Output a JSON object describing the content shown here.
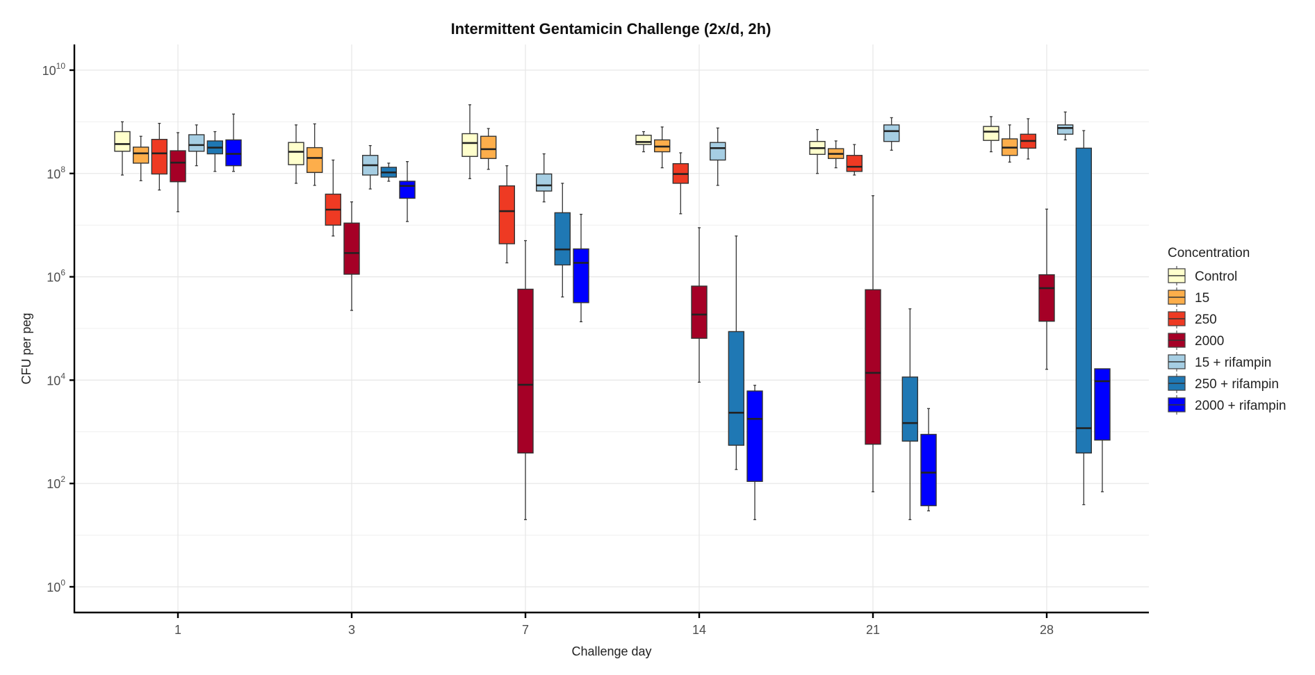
{
  "chart_data": {
    "type": "boxplot",
    "title": "Intermittent Gentamicin Challenge (2x/d, 2h)",
    "xlabel": "Challenge day",
    "ylabel": "CFU per peg",
    "yscale": "log10",
    "ylim_log10": [
      -0.4,
      10.5
    ],
    "y_ticks_log10": [
      0,
      2,
      4,
      6,
      8,
      10
    ],
    "y_tick_base": "10",
    "categories": [
      "1",
      "3",
      "7",
      "14",
      "21",
      "28"
    ],
    "grid": true,
    "legend": {
      "title": "Concentration",
      "position": "right"
    },
    "series": [
      {
        "name": "Control",
        "color": "#FFFFCC",
        "boxes_log10": [
          {
            "day": "1",
            "min": 7.97,
            "q1": 8.43,
            "median": 8.57,
            "q3": 8.81,
            "max": 9.0
          },
          {
            "day": "3",
            "min": 7.81,
            "q1": 8.17,
            "median": 8.42,
            "q3": 8.6,
            "max": 8.94
          },
          {
            "day": "7",
            "min": 7.9,
            "q1": 8.33,
            "median": 8.59,
            "q3": 8.77,
            "max": 9.33
          },
          {
            "day": "14",
            "min": 8.42,
            "q1": 8.56,
            "median": 8.61,
            "q3": 8.74,
            "max": 8.81
          },
          {
            "day": "21",
            "min": 8.0,
            "q1": 8.37,
            "median": 8.49,
            "q3": 8.62,
            "max": 8.85
          },
          {
            "day": "28",
            "min": 8.42,
            "q1": 8.64,
            "median": 8.81,
            "q3": 8.91,
            "max": 9.1
          }
        ]
      },
      {
        "name": "15",
        "color": "#FDAE4B",
        "boxes_log10": [
          {
            "day": "1",
            "min": 7.86,
            "q1": 8.2,
            "median": 8.39,
            "q3": 8.51,
            "max": 8.72
          },
          {
            "day": "3",
            "min": 7.77,
            "q1": 8.02,
            "median": 8.3,
            "q3": 8.5,
            "max": 8.96
          },
          {
            "day": "7",
            "min": 8.08,
            "q1": 8.29,
            "median": 8.47,
            "q3": 8.72,
            "max": 8.87
          },
          {
            "day": "14",
            "min": 8.11,
            "q1": 8.42,
            "median": 8.52,
            "q3": 8.65,
            "max": 8.9
          },
          {
            "day": "21",
            "min": 8.11,
            "q1": 8.29,
            "median": 8.38,
            "q3": 8.48,
            "max": 8.63
          },
          {
            "day": "28",
            "min": 8.22,
            "q1": 8.35,
            "median": 8.5,
            "q3": 8.67,
            "max": 8.94
          }
        ]
      },
      {
        "name": "250",
        "color": "#EE3A23",
        "boxes_log10": [
          {
            "day": "1",
            "min": 7.68,
            "q1": 7.99,
            "median": 8.39,
            "q3": 8.66,
            "max": 8.97
          },
          {
            "day": "3",
            "min": 6.79,
            "q1": 7.0,
            "median": 7.3,
            "q3": 7.6,
            "max": 8.26
          },
          {
            "day": "7",
            "min": 6.27,
            "q1": 6.64,
            "median": 7.27,
            "q3": 7.76,
            "max": 8.15
          },
          {
            "day": "14",
            "min": 7.22,
            "q1": 7.81,
            "median": 7.99,
            "q3": 8.19,
            "max": 8.4
          },
          {
            "day": "21",
            "min": 7.97,
            "q1": 8.04,
            "median": 8.13,
            "q3": 8.35,
            "max": 8.56
          },
          {
            "day": "28",
            "min": 8.28,
            "q1": 8.49,
            "median": 8.63,
            "q3": 8.76,
            "max": 9.06
          }
        ]
      },
      {
        "name": "2000",
        "color": "#A50026",
        "boxes_log10": [
          {
            "day": "1",
            "min": 7.26,
            "q1": 7.84,
            "median": 8.21,
            "q3": 8.44,
            "max": 8.79
          },
          {
            "day": "3",
            "min": 5.35,
            "q1": 6.05,
            "median": 6.46,
            "q3": 7.04,
            "max": 7.45
          },
          {
            "day": "7",
            "min": 1.3,
            "q1": 2.59,
            "median": 3.91,
            "q3": 5.76,
            "max": 6.7
          },
          {
            "day": "14",
            "min": 3.96,
            "q1": 4.81,
            "median": 5.27,
            "q3": 5.82,
            "max": 6.95
          },
          {
            "day": "21",
            "min": 1.84,
            "q1": 2.76,
            "median": 4.14,
            "q3": 5.75,
            "max": 7.57
          },
          {
            "day": "28",
            "min": 4.21,
            "q1": 5.14,
            "median": 5.78,
            "q3": 6.04,
            "max": 7.31
          }
        ]
      },
      {
        "name": "15 + rifampin",
        "color": "#A6CEE3",
        "boxes_log10": [
          {
            "day": "1",
            "min": 8.15,
            "q1": 8.43,
            "median": 8.55,
            "q3": 8.75,
            "max": 8.94
          },
          {
            "day": "3",
            "min": 7.7,
            "q1": 7.97,
            "median": 8.16,
            "q3": 8.35,
            "max": 8.54
          },
          {
            "day": "7",
            "min": 7.45,
            "q1": 7.66,
            "median": 7.77,
            "q3": 7.99,
            "max": 8.38
          },
          {
            "day": "14",
            "min": 7.77,
            "q1": 8.26,
            "median": 8.49,
            "q3": 8.6,
            "max": 8.88
          },
          {
            "day": "21",
            "min": 8.45,
            "q1": 8.62,
            "median": 8.82,
            "q3": 8.94,
            "max": 9.08
          },
          {
            "day": "28",
            "min": 8.65,
            "q1": 8.76,
            "median": 8.88,
            "q3": 8.94,
            "max": 9.19
          }
        ]
      },
      {
        "name": "250 + rifampin",
        "color": "#1F78B4",
        "boxes_log10": [
          {
            "day": "1",
            "min": 8.04,
            "q1": 8.38,
            "median": 8.5,
            "q3": 8.63,
            "max": 8.81
          },
          {
            "day": "3",
            "min": 7.85,
            "q1": 7.93,
            "median": 8.02,
            "q3": 8.12,
            "max": 8.2
          },
          {
            "day": "7",
            "min": 5.61,
            "q1": 6.23,
            "median": 6.53,
            "q3": 7.24,
            "max": 7.81
          },
          {
            "day": "14",
            "min": 2.27,
            "q1": 2.74,
            "median": 3.37,
            "q3": 4.94,
            "max": 6.79
          },
          {
            "day": "21",
            "min": 1.3,
            "q1": 2.82,
            "median": 3.17,
            "q3": 4.06,
            "max": 5.38
          },
          {
            "day": "28",
            "min": 1.59,
            "q1": 2.59,
            "median": 3.07,
            "q3": 8.49,
            "max": 8.83
          }
        ]
      },
      {
        "name": "2000 + rifampin",
        "color": "#0000FF",
        "boxes_log10": [
          {
            "day": "1",
            "min": 8.04,
            "q1": 8.15,
            "median": 8.38,
            "q3": 8.65,
            "max": 9.15
          },
          {
            "day": "3",
            "min": 7.07,
            "q1": 7.52,
            "median": 7.76,
            "q3": 7.85,
            "max": 8.23
          },
          {
            "day": "7",
            "min": 5.13,
            "q1": 5.5,
            "median": 6.27,
            "q3": 6.54,
            "max": 7.21
          },
          {
            "day": "14",
            "min": 1.3,
            "q1": 2.04,
            "median": 3.25,
            "q3": 3.79,
            "max": 3.9
          },
          {
            "day": "21",
            "min": 1.47,
            "q1": 1.57,
            "median": 2.21,
            "q3": 2.95,
            "max": 3.45
          },
          {
            "day": "28",
            "min": 1.84,
            "q1": 2.84,
            "median": 3.98,
            "q3": 4.22,
            "max": 4.22
          }
        ]
      }
    ]
  }
}
